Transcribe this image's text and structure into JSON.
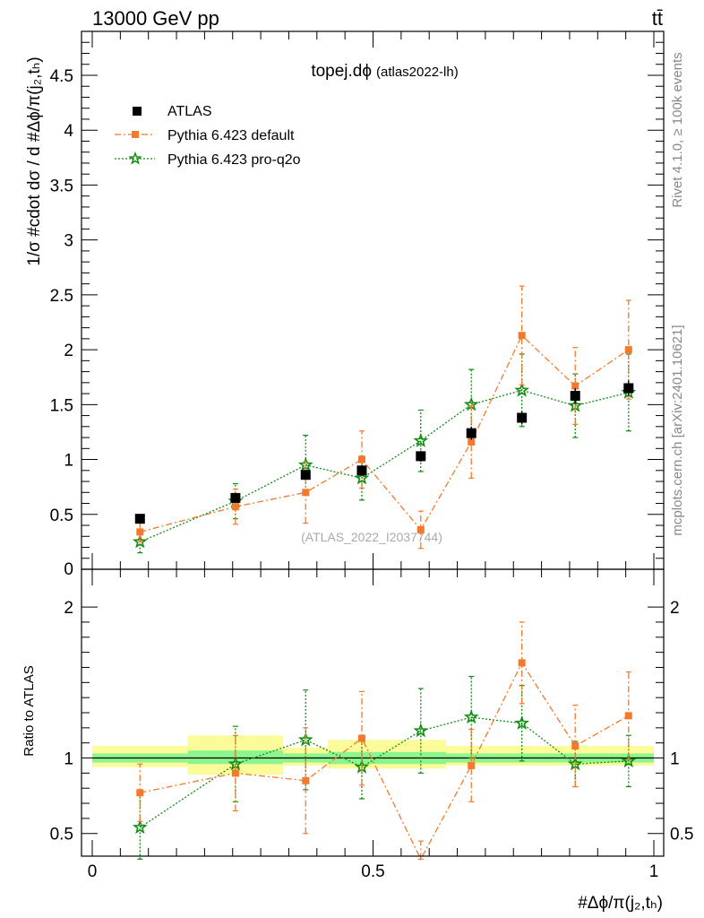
{
  "header": {
    "energy_label": "13000 GeV pp",
    "process_label": "tt̄"
  },
  "side_labels": {
    "rivet": "Rivet 4.1.0, ≥ 100k events",
    "mcplots": "mcplots.cern.ch [arXiv:2401.10621]"
  },
  "colors": {
    "atlas": "#000000",
    "default": "#f5792c",
    "proq2o": "#128c12",
    "band_inner": "#8ef58e",
    "band_outer": "#fbfb9a"
  },
  "chart_data": [
    {
      "type": "scatter",
      "panel": "main",
      "title_main": "topej.dϕ",
      "title_sub": "(atlas2022-lh)",
      "ylabel": "1/σ #cdot dσ / d #Δϕ/π(j₂,tₕ)",
      "xlim": [
        0,
        1
      ],
      "ylim": [
        0,
        4.9
      ],
      "yticks": [
        0.5,
        1,
        1.5,
        2,
        2.5,
        3,
        3.5,
        4,
        4.5
      ],
      "yticks_clipped_label": "0",
      "watermark": "(ATLAS_2022_I2037744)",
      "legend": [
        "ATLAS",
        "Pythia 6.423 default",
        "Pythia 6.423 pro-q2o"
      ],
      "legend_position": "top-left",
      "series": [
        {
          "name": "ATLAS",
          "marker": "square",
          "x": [
            0.085,
            0.255,
            0.38,
            0.48,
            0.585,
            0.675,
            0.765,
            0.86,
            0.955
          ],
          "y": [
            0.46,
            0.65,
            0.86,
            0.9,
            1.03,
            1.24,
            1.38,
            1.58,
            1.65
          ],
          "err": [
            0.03,
            0.04,
            0.04,
            0.05,
            0.05,
            0.06,
            0.06,
            0.07,
            0.07
          ]
        },
        {
          "name": "Pythia 6.423 default",
          "marker": "square-small",
          "x": [
            0.085,
            0.255,
            0.38,
            0.48,
            0.585,
            0.675,
            0.765,
            0.86,
            0.955
          ],
          "y": [
            0.34,
            0.57,
            0.7,
            1.0,
            0.36,
            1.16,
            2.13,
            1.67,
            2.0
          ],
          "err": [
            0.09,
            0.16,
            0.28,
            0.26,
            0.17,
            0.33,
            0.45,
            0.35,
            0.45
          ]
        },
        {
          "name": "Pythia 6.423 pro-q2o",
          "marker": "star",
          "x": [
            0.085,
            0.255,
            0.38,
            0.48,
            0.585,
            0.675,
            0.765,
            0.86,
            0.955
          ],
          "y": [
            0.25,
            0.62,
            0.95,
            0.83,
            1.17,
            1.5,
            1.63,
            1.49,
            1.61
          ],
          "err": [
            0.1,
            0.16,
            0.27,
            0.2,
            0.28,
            0.32,
            0.33,
            0.29,
            0.35
          ]
        }
      ]
    },
    {
      "type": "scatter",
      "panel": "ratio",
      "ylabel": "Ratio to ATLAS",
      "xlabel": "#Δϕ/π(j₂,tₕ)",
      "xlim": [
        0,
        1
      ],
      "ylim": [
        0.35,
        2.25
      ],
      "xticks": [
        0,
        0.5,
        1
      ],
      "yticks": [
        0.5,
        1,
        2
      ],
      "bands": [
        {
          "x0": 0.0,
          "x1": 0.17,
          "inner": [
            0.97,
            1.03
          ],
          "outer": [
            0.94,
            1.08
          ]
        },
        {
          "x0": 0.17,
          "x1": 0.34,
          "inner": [
            0.96,
            1.05
          ],
          "outer": [
            0.89,
            1.15
          ]
        },
        {
          "x0": 0.34,
          "x1": 0.42,
          "inner": [
            0.97,
            1.03
          ],
          "outer": [
            0.95,
            1.07
          ]
        },
        {
          "x0": 0.42,
          "x1": 0.63,
          "inner": [
            0.96,
            1.04
          ],
          "outer": [
            0.93,
            1.12
          ]
        },
        {
          "x0": 0.63,
          "x1": 0.92,
          "inner": [
            0.97,
            1.03
          ],
          "outer": [
            0.95,
            1.08
          ]
        },
        {
          "x0": 0.92,
          "x1": 1.0,
          "inner": [
            0.97,
            1.03
          ],
          "outer": [
            0.95,
            1.08
          ]
        }
      ],
      "series": [
        {
          "name": "Pythia 6.423 default",
          "marker": "square-small",
          "x": [
            0.085,
            0.255,
            0.38,
            0.48,
            0.585,
            0.675,
            0.765,
            0.86,
            0.955
          ],
          "y": [
            0.77,
            0.9,
            0.85,
            1.13,
            0.3,
            0.95,
            1.63,
            1.08,
            1.28
          ],
          "err": [
            0.19,
            0.25,
            0.35,
            0.31,
            0.15,
            0.24,
            0.27,
            0.27,
            0.29
          ]
        },
        {
          "name": "Pythia 6.423 pro-q2o",
          "marker": "star",
          "x": [
            0.085,
            0.255,
            0.38,
            0.48,
            0.585,
            0.675,
            0.765,
            0.86,
            0.955
          ],
          "y": [
            0.54,
            0.96,
            1.12,
            0.94,
            1.18,
            1.27,
            1.23,
            0.96,
            0.98
          ],
          "err": [
            0.22,
            0.25,
            0.33,
            0.21,
            0.28,
            0.27,
            0.25,
            0.15,
            0.17
          ]
        }
      ]
    }
  ]
}
